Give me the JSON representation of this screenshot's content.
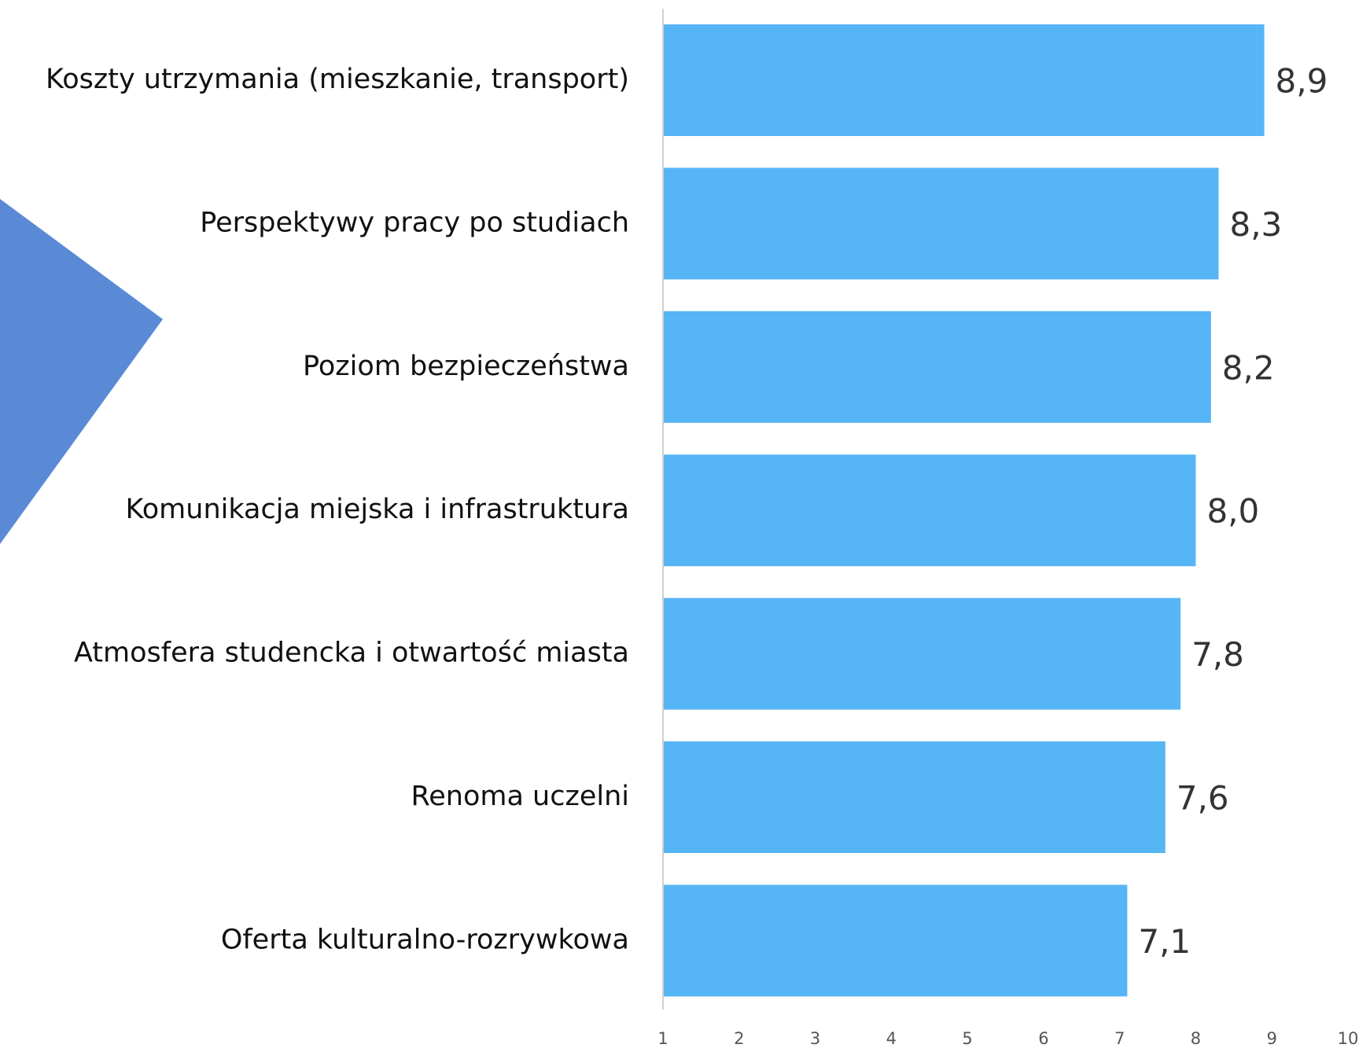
{
  "chart_data": {
    "type": "barh",
    "categories": [
      "Koszty utrzymania (mieszkanie, transport)",
      "Perspektywy pracy po studiach",
      "Poziom bezpieczeństwa",
      "Komunikacja miejska i infrastruktura",
      "Atmosfera studencka i otwartość miasta",
      "Renoma uczelni",
      "Oferta kulturalno-rozrywkowa"
    ],
    "values": [
      8.9,
      8.3,
      8.2,
      8.0,
      7.8,
      7.6,
      7.1
    ],
    "value_labels": [
      "8,9",
      "8,3",
      "8,2",
      "8,0",
      "7,8",
      "7,6",
      "7,1"
    ],
    "color": "#56b5f5",
    "xlim": [
      1,
      10
    ],
    "xticks": [
      1,
      2,
      3,
      4,
      5,
      6,
      7,
      8,
      9,
      10
    ]
  }
}
